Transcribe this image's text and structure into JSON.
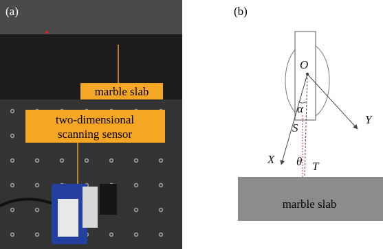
{
  "panel_a": {
    "label": "(a)",
    "slab_label": "marble slab",
    "sensor_label_lines": [
      "two-dimensional",
      "scanning sensor"
    ]
  },
  "panel_b": {
    "label": "(b)",
    "symbols": {
      "O": "O",
      "alpha": "α",
      "S": "S",
      "Y": "Y",
      "X": "X",
      "theta": "θ",
      "T": "T"
    },
    "slab_label": "marble slab"
  }
}
